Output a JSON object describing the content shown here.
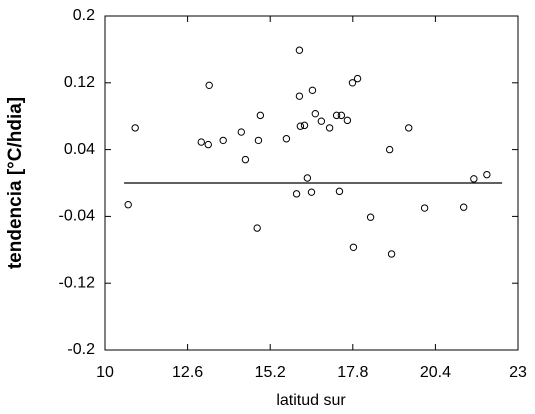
{
  "chart_data": {
    "type": "scatter",
    "x_label": "latitud sur",
    "y_label": "tendencia [°C/hdia]",
    "xlim": [
      10,
      23
    ],
    "xticks": [
      10,
      12.6,
      15.2,
      17.8,
      20.4,
      23
    ],
    "ylim": [
      -0.2,
      0.2
    ],
    "yticks": [
      0.2,
      0.12,
      0.04,
      -0.04,
      -0.12,
      -0.2
    ],
    "color": "#000000",
    "reference_line": {
      "y": 0,
      "x": [
        10.6,
        22.5
      ]
    },
    "x": [
      10.73,
      10.95,
      13.03,
      13.25,
      13.28,
      13.72,
      14.29,
      14.42,
      14.79,
      14.83,
      14.89,
      15.71,
      16.03,
      16.12,
      16.12,
      16.15,
      16.28,
      16.37,
      16.5,
      16.53,
      16.62,
      16.81,
      17.07,
      17.29,
      17.38,
      17.44,
      17.63,
      17.79,
      17.82,
      17.95,
      18.36,
      18.96,
      19.02,
      19.56,
      20.06,
      21.29,
      21.61,
      22.02
    ],
    "values": [
      -0.026,
      0.066,
      0.049,
      0.046,
      0.117,
      0.051,
      0.061,
      0.028,
      -0.054,
      0.051,
      0.081,
      0.053,
      -0.013,
      0.159,
      0.104,
      0.068,
      0.069,
      0.006,
      -0.011,
      0.111,
      0.083,
      0.074,
      0.066,
      0.081,
      -0.01,
      0.081,
      0.075,
      0.12,
      -0.077,
      0.125,
      -0.041,
      0.04,
      -0.085,
      0.066,
      -0.03,
      -0.029,
      0.005,
      0.01
    ]
  }
}
